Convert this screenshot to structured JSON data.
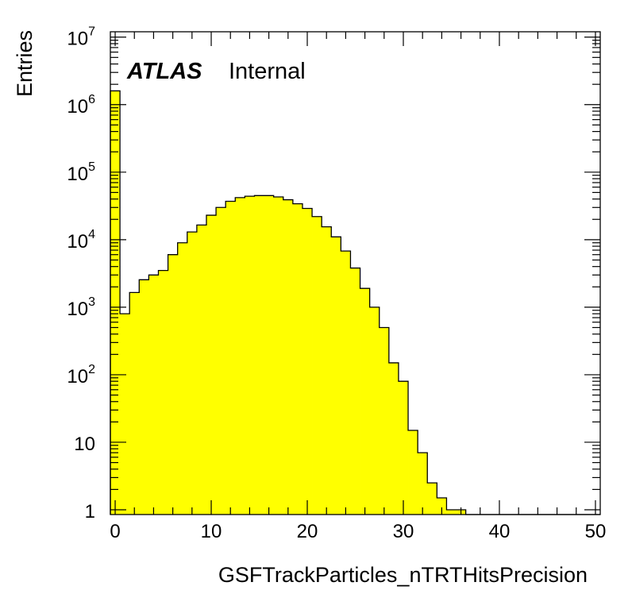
{
  "chart_data": {
    "type": "histogram",
    "xlabel": "GSFTrackParticles_nTRTHitsPrecision",
    "ylabel": "Entries",
    "label_bold": "ATLAS",
    "label_text": "Internal",
    "xlim": [
      -0.5,
      50.5
    ],
    "ylim": [
      0.85,
      12000000
    ],
    "yscale": "log",
    "fill_color": "#ffff00",
    "line_color": "#000000",
    "x_ticks": [
      0,
      10,
      20,
      30,
      40,
      50
    ],
    "x_tick_labels": [
      "0",
      "10",
      "20",
      "30",
      "40",
      "50"
    ],
    "y_ticks": [
      1,
      10,
      100,
      1000,
      10000,
      100000,
      1000000,
      10000000
    ],
    "y_tick_labels": [
      {
        "base": "1",
        "exp": ""
      },
      {
        "base": "10",
        "exp": ""
      },
      {
        "base": "10",
        "exp": "2"
      },
      {
        "base": "10",
        "exp": "3"
      },
      {
        "base": "10",
        "exp": "4"
      },
      {
        "base": "10",
        "exp": "5"
      },
      {
        "base": "10",
        "exp": "6"
      },
      {
        "base": "10",
        "exp": "7"
      }
    ],
    "bins": {
      "first_center": 0,
      "width": 1,
      "values": [
        1600000,
        800,
        1650,
        2550,
        3000,
        3500,
        6000,
        9000,
        13000,
        16500,
        23000,
        30000,
        37000,
        42000,
        44000,
        45000,
        45000,
        43000,
        39000,
        34000,
        29000,
        22000,
        15500,
        11000,
        6800,
        3800,
        1900,
        1000,
        500,
        150,
        80,
        15,
        7,
        2.5,
        1.5,
        1,
        1,
        0,
        0,
        0,
        0,
        0,
        0,
        0,
        0,
        0,
        0,
        0,
        0,
        0,
        0
      ]
    }
  }
}
